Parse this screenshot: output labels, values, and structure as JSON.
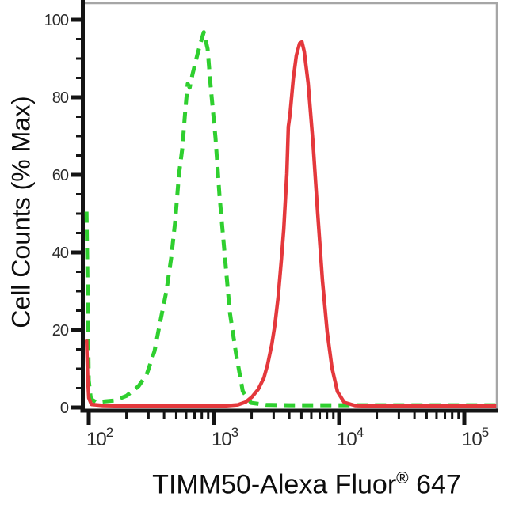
{
  "colors": {
    "background": "#ffffff",
    "axis": "#141414",
    "frame_gray": "#a6a6a6",
    "tick_label": "#2b2b2b",
    "green_curve": "#2fcf2f",
    "red_curve": "#e4383c"
  },
  "chart_data": {
    "type": "line",
    "subtype": "flow-cytometry-overlay-histogram",
    "title": "",
    "xlabel": {
      "text": "TIMM50-Alexa Fluor® 647",
      "main": "TIMM50-Alexa Fluor",
      "sup": "®",
      "suffix": " 647"
    },
    "ylabel": "Cell Counts (% Max)",
    "x_axis": {
      "scale": "log10",
      "tick_exponents": [
        2,
        3,
        4,
        5
      ],
      "tick_labels": [
        "10^2",
        "10^3",
        "10^4",
        "10^5"
      ],
      "minor_ticks": "2-9 within each decade",
      "range_exponent": [
        1.95,
        5.27
      ],
      "grid": false
    },
    "y_axis": {
      "ticks": [
        0,
        20,
        40,
        60,
        80,
        100
      ],
      "minor_step": 5,
      "range": [
        0,
        105
      ],
      "grid": false
    },
    "legend": "none shown",
    "series": [
      {
        "name": "green-dashed",
        "style": "dashed",
        "color": "#2fcf2f",
        "peak": {
          "x": 830,
          "y": 97
        },
        "points": [
          [
            96,
            50.5
          ],
          [
            98,
            30
          ],
          [
            100,
            7
          ],
          [
            104,
            2.2
          ],
          [
            115,
            1.3
          ],
          [
            135,
            1.6
          ],
          [
            160,
            1.8
          ],
          [
            200,
            3
          ],
          [
            250,
            5.5
          ],
          [
            290,
            8.5
          ],
          [
            335,
            14.5
          ],
          [
            372,
            22
          ],
          [
            417,
            30
          ],
          [
            455,
            38.5
          ],
          [
            490,
            48
          ],
          [
            525,
            60
          ],
          [
            560,
            67
          ],
          [
            590,
            76.5
          ],
          [
            617,
            83.5
          ],
          [
            640,
            82.5
          ],
          [
            675,
            86
          ],
          [
            737,
            91
          ],
          [
            782,
            94
          ],
          [
            830,
            96.8
          ],
          [
            890,
            92.5
          ],
          [
            940,
            83
          ],
          [
            1030,
            69.5
          ],
          [
            1105,
            55
          ],
          [
            1200,
            42
          ],
          [
            1340,
            24.5
          ],
          [
            1500,
            14
          ],
          [
            1700,
            4.2
          ],
          [
            1980,
            1.2
          ],
          [
            2600,
            0.7
          ],
          [
            4000,
            0.6
          ],
          [
            7000,
            0.6
          ],
          [
            12000,
            0.6
          ],
          [
            30000,
            0.6
          ],
          [
            70000,
            0.6
          ],
          [
            120000,
            0.6
          ],
          [
            180000,
            0.6
          ]
        ]
      },
      {
        "name": "red-solid",
        "style": "solid",
        "color": "#e4383c",
        "peak": {
          "x": 5050,
          "y": 94
        },
        "points": [
          [
            96,
            17.5
          ],
          [
            98,
            8
          ],
          [
            100,
            2.5
          ],
          [
            105,
            0.8
          ],
          [
            130,
            0.5
          ],
          [
            200,
            0.4
          ],
          [
            400,
            0.4
          ],
          [
            800,
            0.4
          ],
          [
            1200,
            0.4
          ],
          [
            1550,
            0.7
          ],
          [
            1790,
            1.4
          ],
          [
            2010,
            2.7
          ],
          [
            2260,
            4.7
          ],
          [
            2505,
            7.6
          ],
          [
            2690,
            11.2
          ],
          [
            2900,
            16.3
          ],
          [
            3070,
            21.4
          ],
          [
            3260,
            28.6
          ],
          [
            3450,
            37.8
          ],
          [
            3610,
            45.9
          ],
          [
            3820,
            60.2
          ],
          [
            3930,
            72.4
          ],
          [
            4050,
            75.5
          ],
          [
            4300,
            84.7
          ],
          [
            4550,
            90.8
          ],
          [
            4830,
            93.9
          ],
          [
            5050,
            94.3
          ],
          [
            5270,
            91.8
          ],
          [
            5660,
            83.7
          ],
          [
            6180,
            68.4
          ],
          [
            6745,
            50
          ],
          [
            7360,
            32.7
          ],
          [
            8035,
            19.4
          ],
          [
            8770,
            10.2
          ],
          [
            9700,
            4.1
          ],
          [
            11000,
            1.3
          ],
          [
            13400,
            0.5
          ],
          [
            20000,
            0.35
          ],
          [
            60000,
            0.35
          ],
          [
            120000,
            0.35
          ],
          [
            180000,
            0.35
          ]
        ]
      }
    ]
  }
}
